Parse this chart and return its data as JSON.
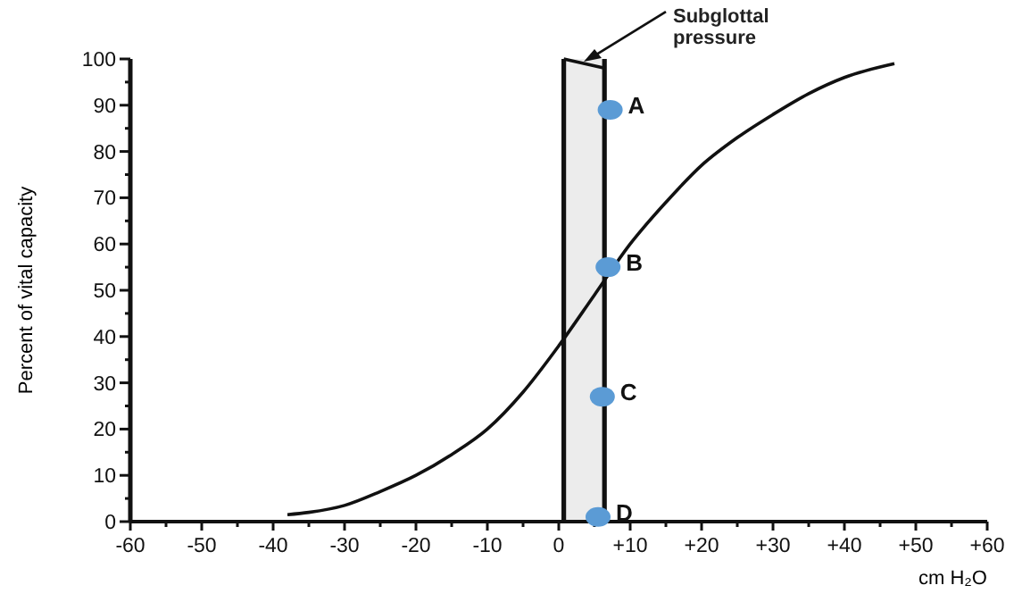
{
  "chart_data": {
    "type": "line",
    "xlabel": "cm H₂O",
    "ylabel": "Percent of vital capacity",
    "xlim": [
      -60,
      60
    ],
    "ylim": [
      0,
      100
    ],
    "xticks": [
      -60,
      {
        "value": -55,
        "label": null
      },
      -50,
      {
        "value": -45,
        "label": null
      },
      -40,
      {
        "value": -35,
        "label": null
      },
      -30,
      {
        "value": -25,
        "label": null
      },
      -20,
      {
        "value": -15,
        "label": null
      },
      -10,
      {
        "value": -5,
        "label": null
      },
      0,
      {
        "value": 5,
        "label": null
      },
      {
        "value": 10,
        "label": "+10"
      },
      {
        "value": 15,
        "label": null
      },
      {
        "value": 20,
        "label": "+20"
      },
      {
        "value": 25,
        "label": null
      },
      {
        "value": 30,
        "label": "+30"
      },
      {
        "value": 35,
        "label": null
      },
      {
        "value": 40,
        "label": "+40"
      },
      {
        "value": 45,
        "label": null
      },
      {
        "value": 50,
        "label": "+50"
      },
      {
        "value": 55,
        "label": null
      },
      {
        "value": 60,
        "label": "+60"
      }
    ],
    "yticks": [
      0,
      {
        "value": 5,
        "label": null
      },
      10,
      {
        "value": 15,
        "label": null
      },
      20,
      {
        "value": 25,
        "label": null
      },
      30,
      {
        "value": 35,
        "label": null
      },
      40,
      {
        "value": 45,
        "label": null
      },
      50,
      {
        "value": 55,
        "label": null
      },
      60,
      {
        "value": 65,
        "label": null
      },
      70,
      {
        "value": 75,
        "label": null
      },
      80,
      {
        "value": 85,
        "label": null
      },
      90,
      {
        "value": 95,
        "label": null
      },
      100
    ],
    "grid": false,
    "bands": [
      {
        "axis": "x",
        "from": 0.7,
        "to": 6.4,
        "color": "#ececec"
      }
    ],
    "ref_lines": [
      {
        "axis": "x",
        "value": 0.7,
        "color": "#111111"
      },
      {
        "axis": "x",
        "value": 6.4,
        "color": "#111111"
      }
    ],
    "series": [
      {
        "color": "#111111",
        "marker": "none",
        "x": [
          -38,
          -35,
          -30,
          -25,
          -20,
          -15,
          -10,
          -5,
          0,
          5,
          10,
          15,
          20,
          25,
          30,
          35,
          40,
          47
        ],
        "values": [
          1.5,
          2,
          3.5,
          6.5,
          10,
          14.5,
          20,
          28,
          38,
          49,
          60,
          69,
          77,
          83,
          88,
          92.5,
          96,
          99
        ]
      },
      {
        "color": "#111111",
        "marker": "none",
        "x": [
          0.7,
          6.4
        ],
        "values": [
          100,
          98
        ]
      },
      {
        "type": "scatter",
        "color": "#5b9bd5",
        "marker": "circle",
        "x": [
          7.2,
          6.9,
          6.1,
          5.5
        ],
        "values": [
          89,
          55,
          27,
          1
        ]
      }
    ],
    "annotations": [
      {
        "text": "A",
        "x": 7.2,
        "y": 89
      },
      {
        "text": "B",
        "x": 6.9,
        "y": 55
      },
      {
        "text": "C",
        "x": 6.1,
        "y": 27
      },
      {
        "text": "D",
        "x": 5.5,
        "y": 1
      },
      {
        "text": "Subglottal pressure",
        "x": 3.5,
        "y": 99.4
      }
    ]
  }
}
